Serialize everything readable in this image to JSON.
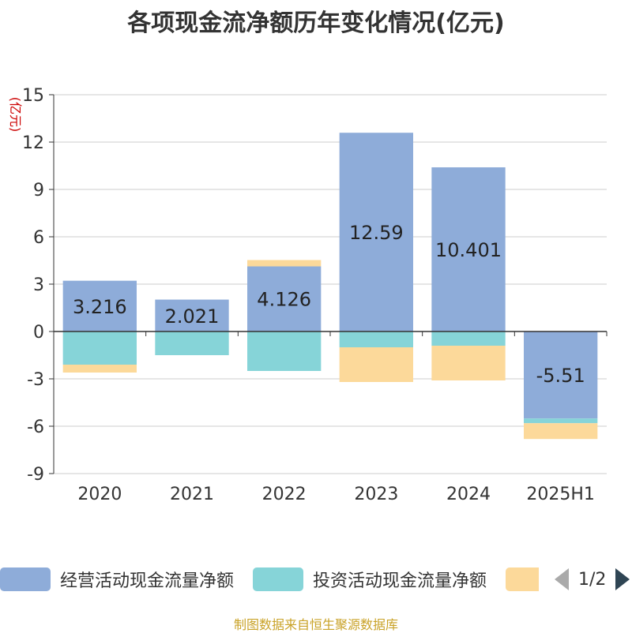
{
  "title": "各项现金流净额历年变化情况(亿元)",
  "source": "制图数据来自恒生聚源数据库",
  "legend": {
    "pager": "1/2"
  },
  "chart_data": {
    "type": "bar",
    "stacked": true,
    "title": "各项现金流净额历年变化情况(亿元)",
    "ylabel": "(亿元)",
    "ylim": [
      -9,
      15
    ],
    "yticks": [
      -9,
      -6,
      -3,
      0,
      3,
      6,
      9,
      12,
      15
    ],
    "grid": true,
    "categories": [
      "2020",
      "2021",
      "2022",
      "2023",
      "2024",
      "2025H1"
    ],
    "series": [
      {
        "name": "经营活动现金流量净额",
        "color": "#8eacd9",
        "values": [
          3.216,
          2.021,
          4.126,
          12.59,
          10.401,
          -5.51
        ],
        "labels": [
          "3.216",
          "2.021",
          "4.126",
          "12.59",
          "10.401",
          "-5.51"
        ]
      },
      {
        "name": "投资活动现金流量净额",
        "color": "#86d4d8",
        "values": [
          -2.1,
          -1.5,
          -2.5,
          -1.0,
          -0.9,
          -0.3
        ]
      },
      {
        "name": "",
        "color": "#fcd99a",
        "values": [
          -0.5,
          0,
          0.4,
          -2.2,
          -2.2,
          -1.0
        ]
      }
    ]
  }
}
